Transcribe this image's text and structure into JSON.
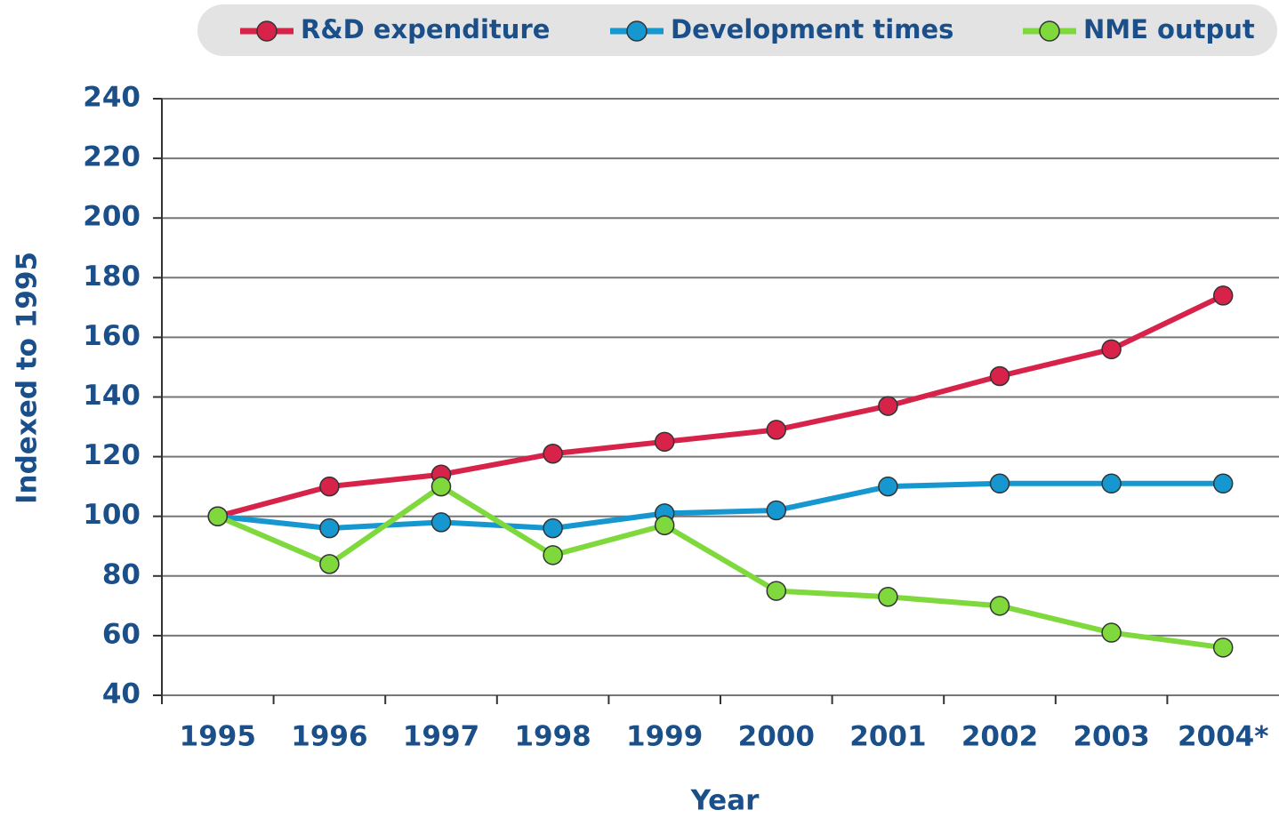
{
  "chart_data": {
    "type": "line",
    "x_label": "Year",
    "y_label": "Indexed to 1995",
    "categories": [
      "1995",
      "1996",
      "1997",
      "1998",
      "1999",
      "2000",
      "2001",
      "2002",
      "2003",
      "2004*"
    ],
    "series": [
      {
        "name": "R&D expenditure",
        "color": "#d7234a",
        "values": [
          100,
          110,
          114,
          121,
          125,
          129,
          137,
          147,
          156,
          174
        ]
      },
      {
        "name": "Development times",
        "color": "#1797cf",
        "values": [
          100,
          96,
          98,
          96,
          101,
          102,
          110,
          111,
          111,
          111
        ]
      },
      {
        "name": "NME output",
        "color": "#7fd93c",
        "values": [
          100,
          84,
          110,
          87,
          97,
          75,
          73,
          70,
          61,
          56
        ]
      }
    ],
    "ylim": [
      40,
      240
    ],
    "yticks": [
      40,
      60,
      80,
      100,
      120,
      140,
      160,
      180,
      200,
      220,
      240
    ],
    "grid": true,
    "legend": "top"
  }
}
